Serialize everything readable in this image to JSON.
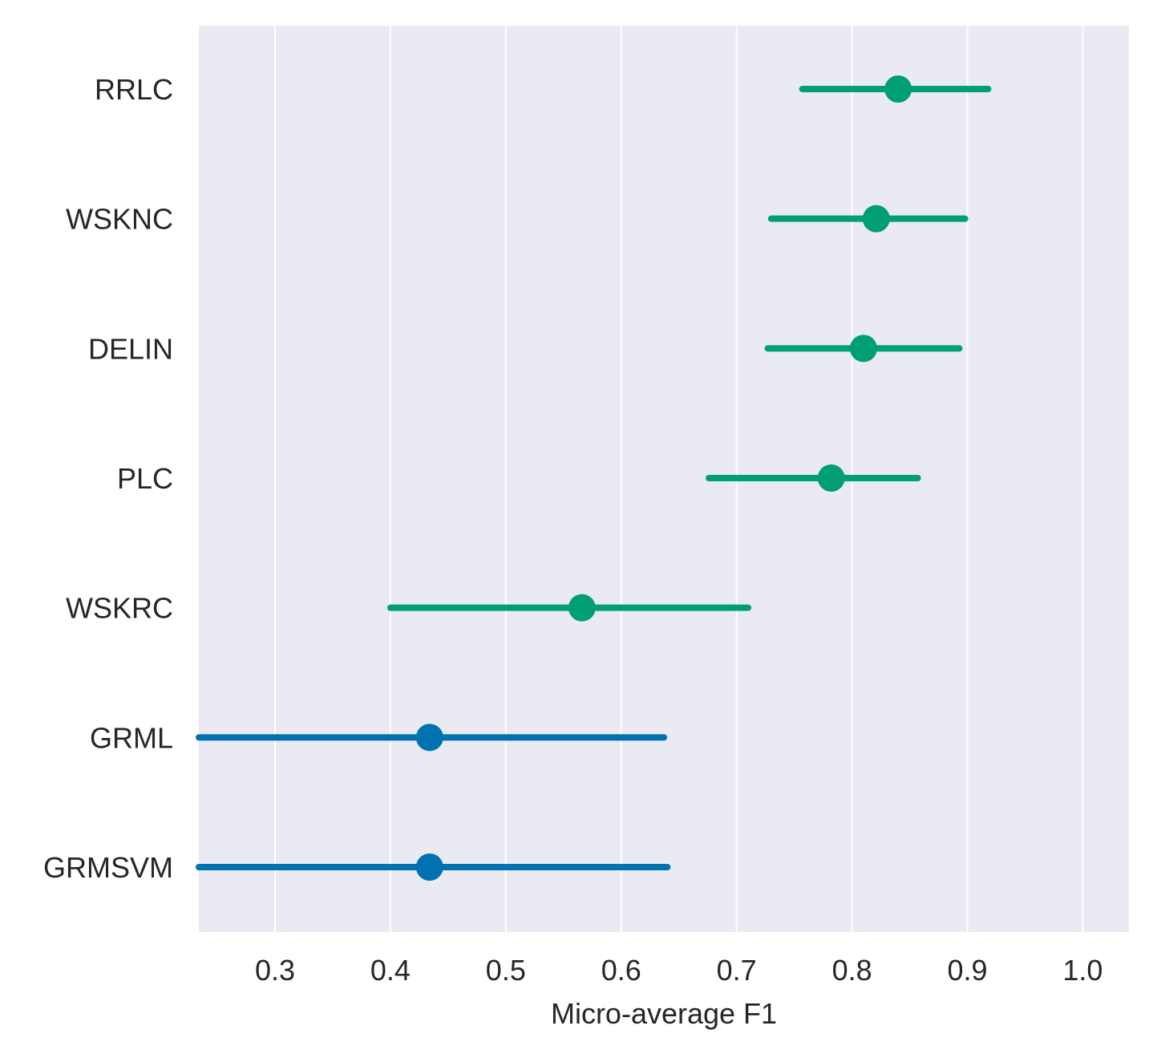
{
  "chart_data": {
    "type": "point",
    "xlabel": "Micro-average F1",
    "ylabel": "",
    "xlim": [
      0.234,
      1.04
    ],
    "xticks": [
      0.3,
      0.4,
      0.5,
      0.6,
      0.7,
      0.8,
      0.9,
      1.0
    ],
    "xtick_labels": [
      "0.3",
      "0.4",
      "0.5",
      "0.6",
      "0.7",
      "0.8",
      "0.9",
      "1.0"
    ],
    "grid": "vertical",
    "colors": {
      "green": "#009e73",
      "blue": "#0072b2"
    },
    "categories": [
      "RRLC",
      "WSKNC",
      "DELIN",
      "PLC",
      "WSKRC",
      "GRML",
      "GRMSVM"
    ],
    "points": [
      {
        "label": "RRLC",
        "value": 0.84,
        "ci_low": 0.757,
        "ci_high": 0.918,
        "color": "#009e73"
      },
      {
        "label": "WSKNC",
        "value": 0.821,
        "ci_low": 0.73,
        "ci_high": 0.898,
        "color": "#009e73"
      },
      {
        "label": "DELIN",
        "value": 0.81,
        "ci_low": 0.727,
        "ci_high": 0.893,
        "color": "#009e73"
      },
      {
        "label": "PLC",
        "value": 0.782,
        "ci_low": 0.676,
        "ci_high": 0.857,
        "color": "#009e73"
      },
      {
        "label": "WSKRC",
        "value": 0.566,
        "ci_low": 0.4,
        "ci_high": 0.71,
        "color": "#009e73"
      },
      {
        "label": "GRML",
        "value": 0.434,
        "ci_low": 0.234,
        "ci_high": 0.637,
        "color": "#0072b2"
      },
      {
        "label": "GRMSVM",
        "value": 0.434,
        "ci_low": 0.234,
        "ci_high": 0.64,
        "color": "#0072b2"
      }
    ]
  }
}
